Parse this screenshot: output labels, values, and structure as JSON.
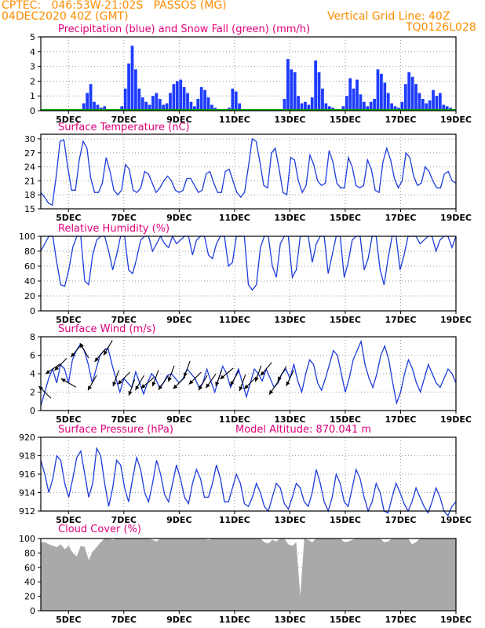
{
  "header": {
    "line1_left": "CPTEC:   046:53W-21:02S   PASSOS (MG)",
    "line2_left": "04DEC2020 40Z (GMT)",
    "line2_right": "Vertical Grid Line: 40Z",
    "code": "TQ0126L028"
  },
  "colors": {
    "header": "#ff8c00",
    "title": "#e0007a",
    "series_line": "#1e3cdc",
    "precip_bar": "#1e3cff",
    "snow": "#00a000",
    "cloud_fill": "#a9a9a9",
    "wind_arrow": "#000000"
  },
  "x_ticks": [
    "5DEC",
    "7DEC",
    "9DEC",
    "11DEC",
    "13DEC",
    "15DEC",
    "17DEC",
    "19DEC"
  ],
  "chart_data": [
    {
      "type": "bar",
      "id": "precip",
      "title": "Precipitation (blue) and Snow Fall (green) (mm/h)",
      "x_start": "04DEC2020",
      "x_step_days": 0.25,
      "ylim": [
        0,
        5
      ],
      "yticks": [
        0,
        1,
        2,
        3,
        4,
        5
      ],
      "values": [
        0,
        0,
        0,
        0,
        0,
        0,
        0,
        0,
        0,
        0,
        0,
        0,
        0.5,
        1.2,
        1.8,
        0.6,
        0.4,
        0.2,
        0.3,
        0,
        0,
        0,
        0,
        0.3,
        1.5,
        3.2,
        4.4,
        2.8,
        1.5,
        0.9,
        0.6,
        0.4,
        1.0,
        1.2,
        0.8,
        0.4,
        0.5,
        1.2,
        1.8,
        2.0,
        2.1,
        1.6,
        1.2,
        0.6,
        0.3,
        0.8,
        1.6,
        1.4,
        0.9,
        0.4,
        0.2,
        0,
        0,
        0,
        0.2,
        1.5,
        1.3,
        0.5,
        0,
        0,
        0,
        0,
        0,
        0,
        0,
        0,
        0,
        0,
        0,
        0,
        0.8,
        3.5,
        2.8,
        2.6,
        1.0,
        0.5,
        0.6,
        0.4,
        0.9,
        3.4,
        2.6,
        1.5,
        0.5,
        0.3,
        0.2,
        0,
        0,
        0.3,
        1.0,
        2.2,
        1.5,
        2.1,
        1.1,
        0.6,
        0.3,
        0.6,
        0.8,
        2.8,
        2.5,
        1.9,
        1.2,
        0.5,
        0.3,
        0.2,
        0.6,
        1.8,
        2.6,
        2.3,
        1.8,
        1.2,
        0.8,
        0.5,
        0.7,
        1.4,
        1.0,
        1.2,
        0.4,
        0.3,
        0.2,
        0.1
      ],
      "snow_values": "all 0"
    },
    {
      "type": "line",
      "id": "temperature",
      "title": "Surface Temperature (nC)",
      "x_start": "04DEC2020",
      "x_step_days": 0.25,
      "ylim": [
        15,
        31
      ],
      "yticks": [
        15,
        18,
        21,
        24,
        27,
        30
      ],
      "values": [
        18.5,
        17.5,
        16.2,
        15.8,
        22.0,
        29.5,
        29.8,
        24.0,
        19.0,
        19.0,
        25.5,
        29.5,
        28.0,
        21.5,
        18.5,
        18.5,
        20.5,
        26.0,
        23.0,
        19.0,
        18.0,
        19.0,
        24.5,
        23.5,
        19.0,
        18.5,
        19.5,
        23.0,
        22.5,
        20.5,
        18.5,
        19.5,
        21.0,
        22.0,
        21.0,
        19.0,
        18.5,
        19.0,
        21.5,
        21.5,
        20.0,
        18.5,
        19.0,
        22.5,
        23.0,
        20.5,
        18.5,
        18.5,
        23.0,
        23.5,
        21.0,
        18.5,
        17.5,
        18.5,
        24.0,
        30.0,
        29.5,
        25.0,
        20.0,
        19.5,
        27.0,
        28.0,
        23.5,
        18.5,
        18.0,
        26.0,
        25.5,
        21.0,
        18.5,
        20.0,
        26.5,
        24.5,
        21.0,
        20.0,
        20.5,
        27.5,
        25.0,
        20.5,
        19.5,
        19.5,
        26.0,
        24.0,
        20.0,
        19.5,
        20.0,
        25.5,
        23.5,
        19.0,
        18.5,
        25.0,
        28.0,
        25.5,
        21.5,
        19.5,
        21.0,
        27.0,
        26.0,
        22.0,
        20.0,
        20.5,
        24.0,
        23.0,
        21.0,
        19.5,
        19.5,
        22.5,
        23.0,
        21.0,
        20.5
      ]
    },
    {
      "type": "line",
      "id": "humidity",
      "title": "Relative Humidity (%)",
      "x_start": "04DEC2020",
      "x_step_days": 0.25,
      "ylim": [
        0,
        100
      ],
      "yticks": [
        0,
        20,
        40,
        60,
        80,
        100
      ],
      "values": [
        80,
        90,
        100,
        100,
        65,
        35,
        33,
        55,
        85,
        100,
        100,
        40,
        35,
        75,
        95,
        100,
        100,
        80,
        55,
        75,
        100,
        100,
        55,
        50,
        70,
        95,
        100,
        100,
        80,
        90,
        100,
        90,
        85,
        100,
        90,
        95,
        100,
        100,
        75,
        95,
        100,
        100,
        75,
        70,
        90,
        100,
        100,
        60,
        65,
        100,
        100,
        100,
        35,
        28,
        35,
        85,
        100,
        100,
        60,
        45,
        90,
        100,
        100,
        45,
        55,
        100,
        100,
        100,
        65,
        90,
        100,
        100,
        50,
        75,
        100,
        100,
        45,
        65,
        95,
        100,
        100,
        55,
        70,
        100,
        100,
        55,
        35,
        70,
        100,
        100,
        55,
        75,
        100,
        100,
        100,
        90,
        95,
        100,
        100,
        80,
        95,
        100,
        100,
        85,
        100
      ]
    },
    {
      "type": "line",
      "id": "wind",
      "title": "Surface Wind (m/s)",
      "x_start": "04DEC2020",
      "x_step_days": 0.25,
      "ylim": [
        0,
        8
      ],
      "yticks": [
        0,
        2,
        4,
        6,
        8
      ],
      "values": [
        0.5,
        2.0,
        3.5,
        4.5,
        3.0,
        5.0,
        4.5,
        3.0,
        5.5,
        6.5,
        7.2,
        6.5,
        5.0,
        3.0,
        4.5,
        6.0,
        6.5,
        6.8,
        5.0,
        3.5,
        2.0,
        3.5,
        3.0,
        2.5,
        4.2,
        3.0,
        1.8,
        3.0,
        4.0,
        3.5,
        2.5,
        3.0,
        3.8,
        4.0,
        3.5,
        3.0,
        3.5,
        4.5,
        4.0,
        3.5,
        2.5,
        3.0,
        4.5,
        3.2,
        2.0,
        3.5,
        4.8,
        4.0,
        2.5,
        3.5,
        4.5,
        3.0,
        1.5,
        3.0,
        4.5,
        4.0,
        3.2,
        4.5,
        3.5,
        2.5,
        3.0,
        4.0,
        4.5,
        3.5,
        5.0,
        3.2,
        2.0,
        4.0,
        5.5,
        5.0,
        3.0,
        2.2,
        3.5,
        5.0,
        6.5,
        6.0,
        4.0,
        2.0,
        3.5,
        5.5,
        6.5,
        7.5,
        5.0,
        3.5,
        2.5,
        4.0,
        6.0,
        7.0,
        5.5,
        3.0,
        0.8,
        2.0,
        4.0,
        5.5,
        4.5,
        3.0,
        2.0,
        3.5,
        5.0,
        4.0,
        3.0,
        2.5,
        3.5,
        4.5,
        4.0,
        3.0
      ]
    },
    {
      "type": "line",
      "id": "pressure",
      "title": "Surface Pressure (hPa)",
      "annotation": "Model Altitude: 870.041 m",
      "x_start": "04DEC2020",
      "x_step_days": 0.25,
      "ylim": [
        912,
        920
      ],
      "yticks": [
        912,
        914,
        916,
        918,
        920
      ],
      "values": [
        917.5,
        916.0,
        914.0,
        915.5,
        918.0,
        917.5,
        915.0,
        913.5,
        915.5,
        917.8,
        918.5,
        916.0,
        913.5,
        915.0,
        918.8,
        918.0,
        915.0,
        912.5,
        914.5,
        917.5,
        917.0,
        914.5,
        913.0,
        915.5,
        917.8,
        916.5,
        914.0,
        913.0,
        915.0,
        917.5,
        916.0,
        913.8,
        913.0,
        915.0,
        917.0,
        915.5,
        913.5,
        912.8,
        915.0,
        916.5,
        915.5,
        913.5,
        913.5,
        915.0,
        917.0,
        915.5,
        913.0,
        913.0,
        914.5,
        916.0,
        915.0,
        912.8,
        912.5,
        913.5,
        915.0,
        914.0,
        912.5,
        912.0,
        913.5,
        915.0,
        914.5,
        912.8,
        912.2,
        913.5,
        915.0,
        914.5,
        913.0,
        912.5,
        914.0,
        916.5,
        915.0,
        913.0,
        912.0,
        913.5,
        916.0,
        915.0,
        913.0,
        912.5,
        914.5,
        916.5,
        915.5,
        913.5,
        912.0,
        913.0,
        915.0,
        914.0,
        912.0,
        911.8,
        913.5,
        915.0,
        914.0,
        912.8,
        912.0,
        913.0,
        914.5,
        913.5,
        912.5,
        911.8,
        913.0,
        914.5,
        913.5,
        912.0,
        911.5,
        912.5,
        913.0
      ]
    },
    {
      "type": "area",
      "id": "cloud",
      "title": "Cloud Cover (%)",
      "x_start": "04DEC2020",
      "x_step_days": 0.25,
      "ylim": [
        0,
        100
      ],
      "yticks": [
        0,
        20,
        40,
        60,
        80,
        100
      ],
      "values": [
        95,
        95,
        92,
        90,
        88,
        92,
        85,
        90,
        80,
        75,
        90,
        88,
        70,
        82,
        88,
        95,
        100,
        100,
        98,
        100,
        100,
        100,
        100,
        100,
        100,
        100,
        100,
        100,
        98,
        96,
        100,
        100,
        100,
        100,
        100,
        100,
        100,
        100,
        100,
        100,
        100,
        100,
        98,
        100,
        100,
        100,
        100,
        100,
        100,
        100,
        100,
        100,
        100,
        100,
        100,
        100,
        95,
        93,
        98,
        96,
        100,
        100,
        92,
        90,
        95,
        20,
        100,
        98,
        95,
        100,
        100,
        100,
        100,
        100,
        100,
        100,
        95,
        96,
        98,
        100,
        100,
        100,
        100,
        100,
        100,
        100,
        95,
        96,
        100,
        100,
        100,
        100,
        100,
        92,
        95,
        100,
        100,
        100,
        100,
        100,
        100,
        100,
        100,
        100,
        100
      ]
    }
  ],
  "wind_vectors": {
    "x_step_days": 0.5,
    "directions_deg_toward": [
      315,
      235,
      225,
      300,
      220,
      330,
      210,
      220,
      210,
      200,
      225,
      200,
      210,
      230,
      200,
      215,
      200,
      225,
      200,
      225,
      210,
      215,
      200,
      230,
      210,
      200,
      225,
      200,
      220,
      215,
      210,
      205
    ]
  }
}
